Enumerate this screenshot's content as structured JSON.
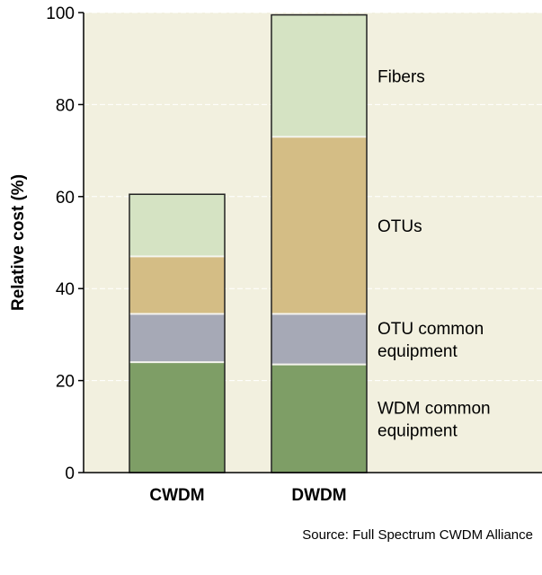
{
  "chart_data": {
    "type": "bar",
    "stacked": true,
    "categories": [
      "CWDM",
      "DWDM"
    ],
    "series": [
      {
        "name": "WDM common equipment",
        "values": [
          24,
          23.5
        ],
        "color": "#7e9e66"
      },
      {
        "name": "OTU common equipment",
        "values": [
          10.5,
          11
        ],
        "color": "#a6a9b6"
      },
      {
        "name": "OTUs",
        "values": [
          12.5,
          38.5
        ],
        "color": "#d4bd85"
      },
      {
        "name": "Fibers",
        "values": [
          13.5,
          26.5
        ],
        "color": "#d5e3c3"
      }
    ],
    "segment_labels": [
      [
        "WDM common",
        "equipment"
      ],
      [
        "OTU common",
        "equipment"
      ],
      [
        "OTUs"
      ],
      [
        "Fibers"
      ]
    ],
    "ylabel": "Relative cost (%)",
    "ylim": [
      0,
      100
    ],
    "yticks": [
      "0",
      "20",
      "40",
      "60",
      "80",
      "100"
    ],
    "grid": true,
    "background_color": "#f2f0df",
    "source": "Source: Full Spectrum CWDM Alliance"
  }
}
